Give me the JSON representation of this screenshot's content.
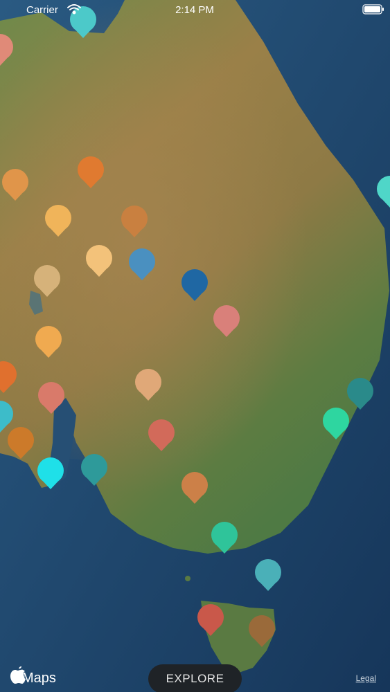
{
  "status_bar": {
    "carrier": "Carrier",
    "time": "2:14 PM"
  },
  "map": {
    "brand": "Maps",
    "legal": "Legal"
  },
  "explore_button": {
    "label": "EXPLORE"
  }
}
